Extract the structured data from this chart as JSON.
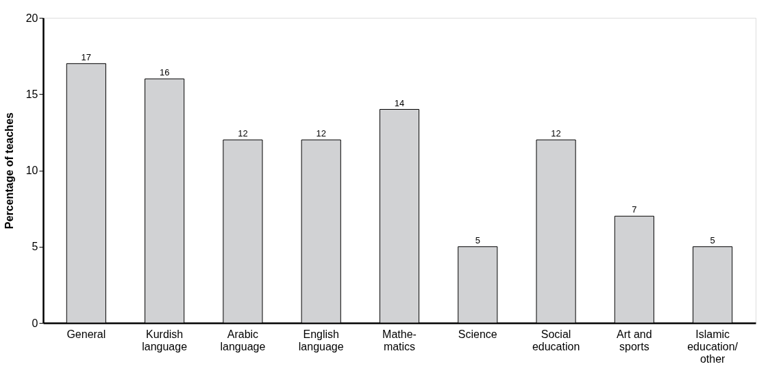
{
  "chart_data": {
    "type": "bar",
    "ylabel": "Percentage of teaches",
    "categories": [
      "General",
      "Kurdish\nlanguage",
      "Arabic\nlanguage",
      "English\nlanguage",
      "Mathe-\nmatics",
      "Science",
      "Social\neducation",
      "Art and\nsports",
      "Islamic\neducation/\nother"
    ],
    "values": [
      17,
      16,
      12,
      12,
      14,
      5,
      12,
      7,
      5
    ],
    "color": "#d1d2d4",
    "ylim": [
      0,
      20
    ],
    "yticks": [
      0,
      5,
      10,
      15,
      20
    ],
    "grid": false,
    "data_labels": true
  }
}
